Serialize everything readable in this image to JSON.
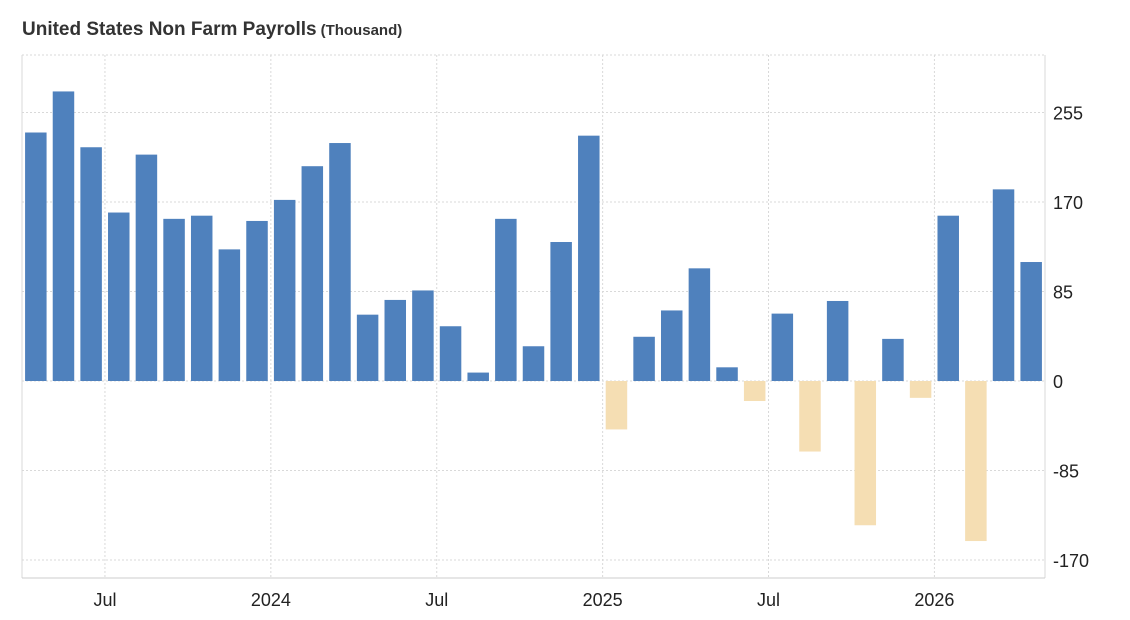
{
  "title": "United States Non Farm Payrolls",
  "unit": "(Thousand)",
  "chart_data": {
    "type": "bar",
    "title": "United States Non Farm Payrolls",
    "unit": "Thousand",
    "xlabel": "",
    "ylabel": "",
    "ylim": [
      -188,
      305
    ],
    "yticks": [
      255,
      170,
      85,
      0,
      -85,
      -170
    ],
    "ytick_labels": [
      "255",
      "170",
      "85",
      "0",
      "-85",
      "-170"
    ],
    "x_tick_labels": [
      "Jul",
      "2024",
      "Jul",
      "2025",
      "Jul",
      "2026"
    ],
    "x_tick_after_bar": [
      3,
      9,
      15,
      21,
      27,
      33
    ],
    "grid": true,
    "colors": {
      "positive": "#4f81bd",
      "negative": "#f5deb3",
      "grid": "#d9d9d9",
      "axis": "#d9d9d9",
      "text": "#222222"
    },
    "values": [
      236,
      275,
      222,
      160,
      215,
      154,
      157,
      125,
      152,
      172,
      204,
      226,
      63,
      77,
      86,
      52,
      8,
      154,
      33,
      132,
      233,
      -46,
      42,
      67,
      107,
      13,
      -19,
      64,
      -67,
      76,
      -137,
      40,
      -16,
      157,
      -152,
      182,
      113
    ]
  }
}
